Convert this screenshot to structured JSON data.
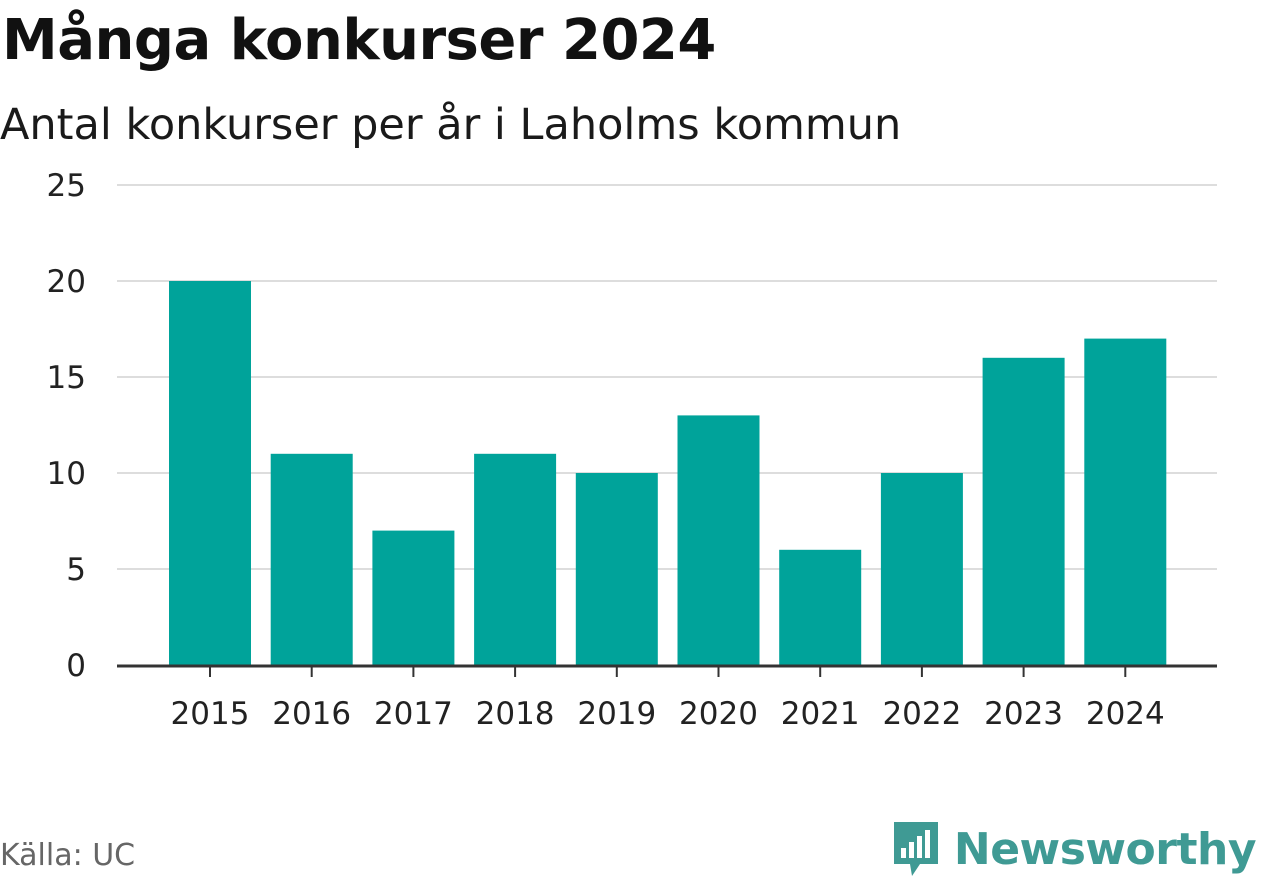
{
  "header": {
    "title": "Många konkurser 2024",
    "subtitle": "Antal konkurser per år i Laholms kommun"
  },
  "footer": {
    "source": "Källa: UC",
    "brand": "Newsworthy",
    "brand_icon": "newsworthy-logo-icon"
  },
  "colors": {
    "bar": "#00a39a",
    "grid": "#dddddd",
    "axis": "#333333",
    "brand": "#3f9a94"
  },
  "chart_data": {
    "type": "bar",
    "title": "Många konkurser 2024",
    "subtitle": "Antal konkurser per år i Laholms kommun",
    "categories": [
      "2015",
      "2016",
      "2017",
      "2018",
      "2019",
      "2020",
      "2021",
      "2022",
      "2023",
      "2024"
    ],
    "values": [
      20,
      11,
      7,
      11,
      10,
      13,
      6,
      10,
      16,
      17
    ],
    "yticks": [
      0,
      5,
      10,
      15,
      20,
      25
    ],
    "ylim": [
      0,
      25
    ],
    "grid": true,
    "legend": "none"
  }
}
